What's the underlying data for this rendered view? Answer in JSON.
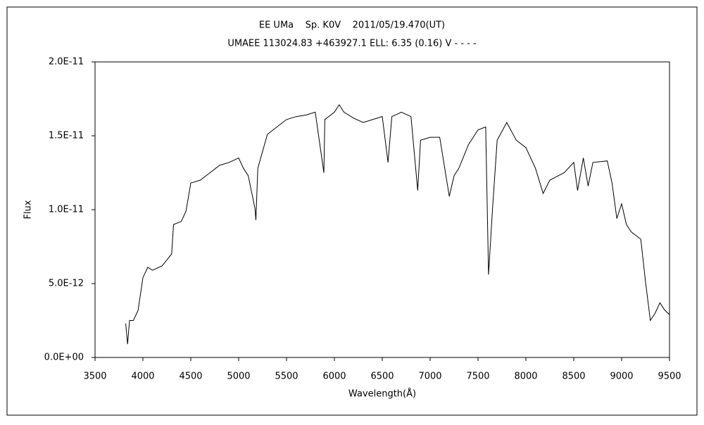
{
  "chart_data": {
    "type": "line",
    "title": "EE UMa    Sp. K0V    2011/05/19.470(UT)",
    "subtitle": "UMAEE 113024.83 +463927.1 ELL: 6.35 (0.16) V - - - -",
    "x_label": "Wavelength(Å)",
    "y_label": "Flux",
    "xlim": [
      3500,
      9500
    ],
    "xticks": [
      3500,
      4000,
      4500,
      5000,
      5500,
      6000,
      6500,
      7000,
      7500,
      8000,
      8500,
      9000,
      9500
    ],
    "ylim": [
      0,
      2e-11
    ],
    "yticks": [
      {
        "value": 0,
        "label": "0.0E+00"
      },
      {
        "value": 5e-12,
        "label": "5.0E-12"
      },
      {
        "value": 1e-11,
        "label": "1.0E-11"
      },
      {
        "value": 1.5e-11,
        "label": "1.5E-11"
      },
      {
        "value": 2e-11,
        "label": "2.0E-11"
      }
    ],
    "grid": false,
    "series": [
      {
        "color": "#000000",
        "x": [
          3820,
          3840,
          3860,
          3900,
          3950,
          4000,
          4050,
          4100,
          4200,
          4250,
          4300,
          4320,
          4400,
          4450,
          4500,
          4600,
          4700,
          4800,
          4900,
          5000,
          5050,
          5100,
          5170,
          5180,
          5200,
          5300,
          5400,
          5500,
          5600,
          5700,
          5800,
          5890,
          5900,
          6000,
          6050,
          6100,
          6200,
          6300,
          6400,
          6500,
          6560,
          6600,
          6700,
          6800,
          6870,
          6900,
          7000,
          7100,
          7200,
          7250,
          7300,
          7400,
          7500,
          7580,
          7610,
          7650,
          7700,
          7800,
          7900,
          8000,
          8100,
          8180,
          8250,
          8400,
          8500,
          8540,
          8600,
          8650,
          8700,
          8850,
          8900,
          8950,
          9000,
          9050,
          9100,
          9200,
          9250,
          9300,
          9350,
          9400,
          9450,
          9500
        ],
        "values": [
          2.3e-12,
          9e-13,
          2.5e-12,
          2.5e-12,
          3.2e-12,
          5.4e-12,
          6.1e-12,
          5.9e-12,
          6.2e-12,
          6.6e-12,
          7e-12,
          9e-12,
          9.2e-12,
          9.9e-12,
          1.18e-11,
          1.2e-11,
          1.25e-11,
          1.3e-11,
          1.32e-11,
          1.35e-11,
          1.28e-11,
          1.23e-11,
          1.01e-11,
          9.3e-12,
          1.28e-11,
          1.51e-11,
          1.56e-11,
          1.61e-11,
          1.63e-11,
          1.64e-11,
          1.66e-11,
          1.25e-11,
          1.61e-11,
          1.66e-11,
          1.71e-11,
          1.66e-11,
          1.62e-11,
          1.59e-11,
          1.61e-11,
          1.63e-11,
          1.32e-11,
          1.63e-11,
          1.66e-11,
          1.63e-11,
          1.13e-11,
          1.47e-11,
          1.49e-11,
          1.49e-11,
          1.09e-11,
          1.23e-11,
          1.28e-11,
          1.44e-11,
          1.54e-11,
          1.56e-11,
          5.6e-12,
          9.9e-12,
          1.47e-11,
          1.59e-11,
          1.47e-11,
          1.42e-11,
          1.28e-11,
          1.11e-11,
          1.2e-11,
          1.25e-11,
          1.32e-11,
          1.13e-11,
          1.35e-11,
          1.16e-11,
          1.32e-11,
          1.33e-11,
          1.18e-11,
          9.4e-12,
          1.04e-11,
          9e-12,
          8.5e-12,
          8e-12,
          5.1e-12,
          2.5e-12,
          3e-12,
          3.7e-12,
          3.2e-12,
          2.9e-12
        ]
      }
    ]
  }
}
